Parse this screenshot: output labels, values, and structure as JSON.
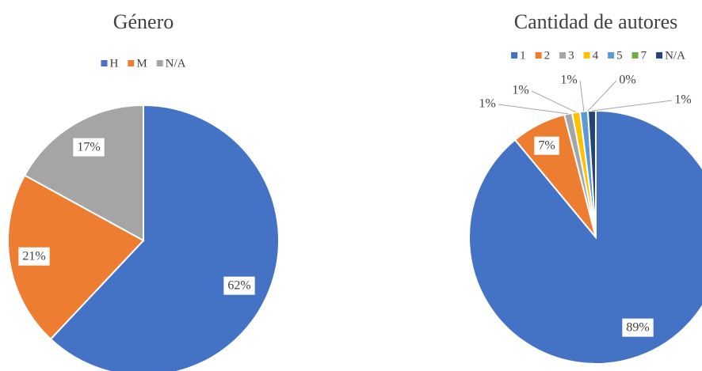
{
  "chart_data": [
    {
      "type": "pie",
      "title": "Género",
      "categories": [
        "H",
        "M",
        "N/A"
      ],
      "values": [
        62,
        21,
        17
      ],
      "value_labels": [
        "62%",
        "21%",
        "17%"
      ],
      "colors": [
        "#4472c4",
        "#ed7d31",
        "#a5a5a5"
      ]
    },
    {
      "type": "pie",
      "title": "Cantidad de autores",
      "categories": [
        "1",
        "2",
        "3",
        "4",
        "5",
        "7",
        "N/A"
      ],
      "values": [
        89,
        7,
        1,
        1,
        1,
        0,
        1
      ],
      "value_labels": [
        "89%",
        "7%",
        "1%",
        "1%",
        "1%",
        "0%",
        "1%"
      ],
      "colors": [
        "#4472c4",
        "#ed7d31",
        "#a5a5a5",
        "#ffc000",
        "#5b9bd5",
        "#70ad47",
        "#264478"
      ]
    }
  ]
}
